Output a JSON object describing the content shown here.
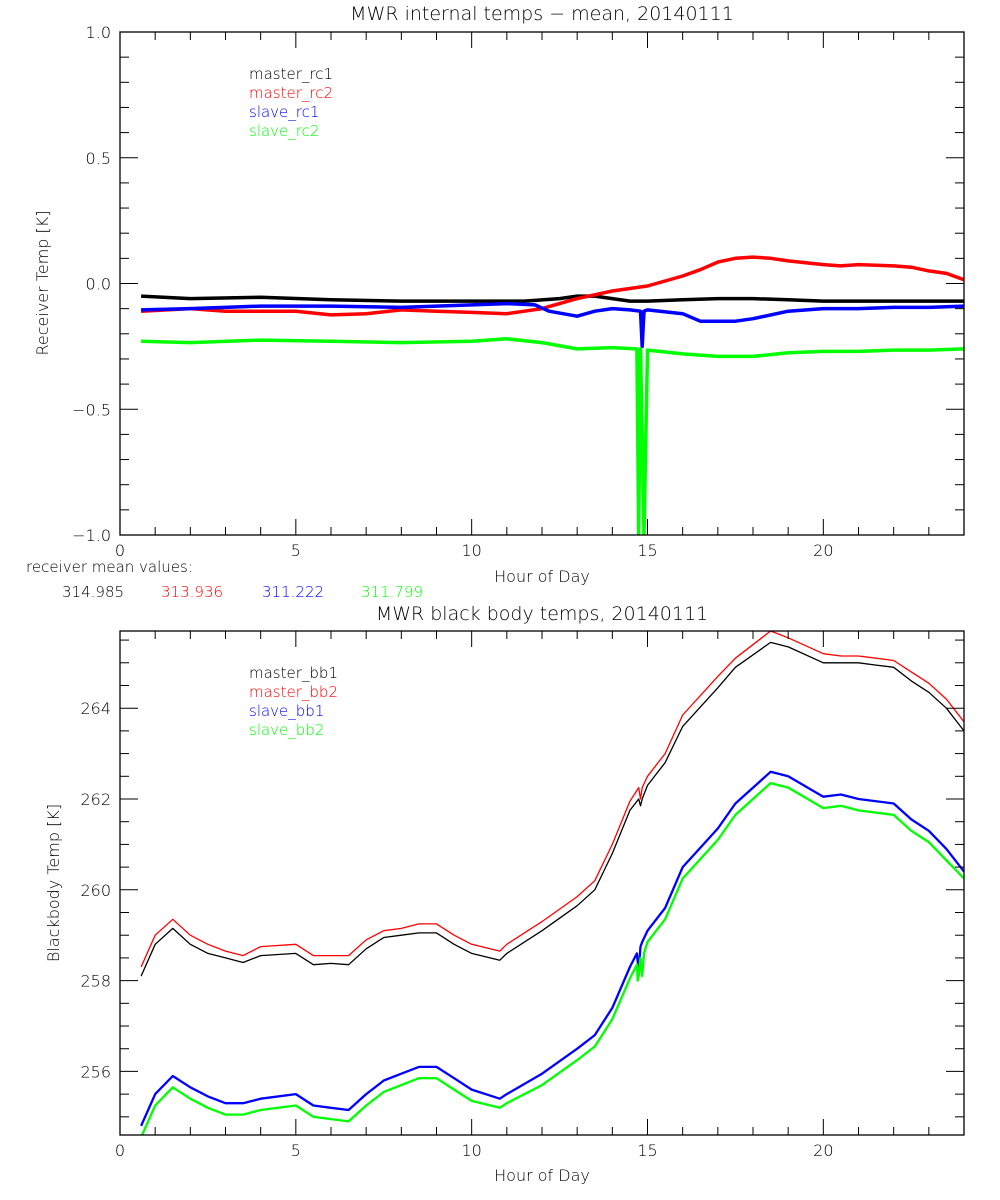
{
  "chart_data": [
    {
      "type": "line",
      "title": "MWR internal temps − mean, 20140111",
      "xlabel": "Hour of Day",
      "ylabel": "Receiver Temp [K]",
      "xlim": [
        0,
        24
      ],
      "ylim": [
        -1.0,
        1.0
      ],
      "xticks": [
        0,
        5,
        10,
        15,
        20
      ],
      "xtick_labels": [
        "0",
        "5",
        "10",
        "15",
        "20"
      ],
      "yticks": [
        -1.0,
        -0.5,
        0.0,
        0.5,
        1.0
      ],
      "ytick_labels": [
        "−1.0",
        "−0.5",
        "0.0",
        "0.5",
        "1.0"
      ],
      "x_minor_step": 1,
      "y_minor_step": 0.1,
      "grid": false,
      "legend_position": "top-left",
      "series": [
        {
          "name": "master_rc1",
          "color": "#000000",
          "x": [
            0.6,
            2,
            4,
            6,
            8,
            10,
            11.5,
            12.5,
            13,
            13.5,
            14,
            14.5,
            15,
            16,
            17,
            18,
            19,
            20,
            21,
            22,
            23,
            24
          ],
          "y": [
            -0.05,
            -0.06,
            -0.055,
            -0.065,
            -0.07,
            -0.07,
            -0.07,
            -0.06,
            -0.05,
            -0.05,
            -0.06,
            -0.07,
            -0.07,
            -0.065,
            -0.06,
            -0.06,
            -0.065,
            -0.07,
            -0.07,
            -0.07,
            -0.07,
            -0.07
          ]
        },
        {
          "name": "master_rc2",
          "color": "#ff0000",
          "x": [
            0.6,
            2,
            3,
            5,
            6,
            7,
            8,
            9,
            10,
            11,
            11.5,
            12,
            12.5,
            13,
            13.5,
            14,
            14.5,
            15,
            15.5,
            16,
            16.5,
            17,
            17.5,
            18,
            18.5,
            19,
            20,
            20.5,
            21,
            22,
            22.5,
            23,
            23.5,
            24
          ],
          "y": [
            -0.11,
            -0.1,
            -0.11,
            -0.11,
            -0.125,
            -0.12,
            -0.105,
            -0.11,
            -0.115,
            -0.12,
            -0.11,
            -0.1,
            -0.08,
            -0.06,
            -0.045,
            -0.03,
            -0.02,
            -0.01,
            0.01,
            0.03,
            0.055,
            0.085,
            0.1,
            0.105,
            0.1,
            0.09,
            0.075,
            0.07,
            0.075,
            0.07,
            0.065,
            0.05,
            0.04,
            0.015
          ]
        },
        {
          "name": "slave_rc1",
          "color": "#0000ff",
          "x": [
            0.6,
            2,
            4,
            6,
            8,
            10,
            11,
            11.8,
            12.2,
            13,
            13.5,
            14,
            14.5,
            14.8,
            14.85,
            14.9,
            15,
            16,
            16.5,
            17,
            17.5,
            18,
            19,
            20,
            21,
            22,
            23,
            24
          ],
          "y": [
            -0.105,
            -0.1,
            -0.09,
            -0.09,
            -0.095,
            -0.085,
            -0.08,
            -0.085,
            -0.11,
            -0.13,
            -0.11,
            -0.1,
            -0.105,
            -0.11,
            -0.25,
            -0.11,
            -0.105,
            -0.12,
            -0.15,
            -0.15,
            -0.15,
            -0.14,
            -0.11,
            -0.1,
            -0.1,
            -0.095,
            -0.095,
            -0.09
          ]
        },
        {
          "name": "slave_rc2",
          "color": "#00ff00",
          "x": [
            0.6,
            2,
            4,
            6,
            8,
            10,
            11,
            12,
            13,
            14,
            14.7,
            14.75,
            14.8,
            14.9,
            15,
            16,
            17,
            18,
            19,
            20,
            21,
            22,
            23,
            24
          ],
          "y": [
            -0.23,
            -0.235,
            -0.225,
            -0.23,
            -0.235,
            -0.23,
            -0.22,
            -0.235,
            -0.26,
            -0.255,
            -0.26,
            -1.0,
            -0.26,
            -1.0,
            -0.265,
            -0.28,
            -0.29,
            -0.29,
            -0.275,
            -0.27,
            -0.27,
            -0.265,
            -0.265,
            -0.26
          ]
        }
      ],
      "annotation": {
        "label": "receiver mean values:",
        "values": [
          {
            "series": "master_rc1",
            "text": "314.985",
            "color": "#000000"
          },
          {
            "series": "master_rc2",
            "text": "313.936",
            "color": "#ff0000"
          },
          {
            "series": "slave_rc1",
            "text": "311.222",
            "color": "#0000ff"
          },
          {
            "series": "slave_rc2",
            "text": "311.799",
            "color": "#00ff00"
          }
        ]
      }
    },
    {
      "type": "line",
      "title": "MWR black body temps, 20140111",
      "xlabel": "Hour of Day",
      "ylabel": "Blackbody Temp [K]",
      "xlim": [
        0,
        24
      ],
      "ylim": [
        254.6,
        265.7
      ],
      "xticks": [
        0,
        5,
        10,
        15,
        20
      ],
      "xtick_labels": [
        "0",
        "5",
        "10",
        "15",
        "20"
      ],
      "yticks": [
        256,
        258,
        260,
        262,
        264
      ],
      "ytick_labels": [
        "256",
        "258",
        "260",
        "262",
        "264"
      ],
      "x_minor_step": 1,
      "y_minor_step": 0.5,
      "grid": false,
      "legend_position": "top-left",
      "series": [
        {
          "name": "master_bb1",
          "color": "#000000",
          "x": [
            0.6,
            1.0,
            1.5,
            2,
            2.5,
            3,
            3.5,
            4,
            5,
            5.5,
            6,
            6.5,
            7,
            7.5,
            8,
            8.5,
            9,
            9.5,
            10,
            10.8,
            11,
            12,
            13,
            13.5,
            14,
            14.5,
            14.75,
            14.8,
            14.85,
            15,
            15.5,
            16,
            17,
            17.5,
            18.5,
            19,
            20,
            20.5,
            21,
            21.5,
            22,
            22.5,
            23,
            23.5,
            24
          ],
          "y": [
            258.1,
            258.8,
            259.15,
            258.8,
            258.6,
            258.5,
            258.4,
            258.55,
            258.6,
            258.35,
            258.38,
            258.35,
            258.7,
            258.95,
            259.0,
            259.05,
            259.05,
            258.8,
            258.6,
            258.45,
            258.6,
            259.1,
            259.65,
            260.0,
            260.8,
            261.75,
            262.0,
            261.85,
            262.0,
            262.3,
            262.8,
            263.6,
            264.45,
            264.9,
            265.45,
            265.35,
            265.0,
            265.0,
            265.0,
            264.95,
            264.9,
            264.6,
            264.35,
            264.0,
            263.5
          ]
        },
        {
          "name": "master_bb2",
          "color": "#ff0000",
          "x": [
            0.6,
            1.0,
            1.5,
            2,
            2.5,
            3,
            3.5,
            4,
            5,
            5.5,
            6,
            6.5,
            7,
            7.5,
            8,
            8.5,
            9,
            9.5,
            10,
            10.8,
            11,
            12,
            13,
            13.5,
            14,
            14.5,
            14.75,
            14.8,
            14.85,
            15,
            15.5,
            16,
            17,
            17.5,
            18.5,
            19,
            20,
            20.5,
            21,
            21.5,
            22,
            22.5,
            23,
            23.5,
            24
          ],
          "y": [
            258.3,
            259.0,
            259.35,
            259.0,
            258.8,
            258.65,
            258.55,
            258.75,
            258.8,
            258.55,
            258.55,
            258.55,
            258.9,
            259.1,
            259.15,
            259.25,
            259.25,
            259.0,
            258.8,
            258.65,
            258.8,
            259.3,
            259.85,
            260.2,
            261.0,
            261.95,
            262.25,
            262.0,
            262.25,
            262.5,
            263.0,
            263.85,
            264.7,
            265.1,
            265.7,
            265.55,
            265.2,
            265.15,
            265.15,
            265.1,
            265.05,
            264.8,
            264.55,
            264.2,
            263.7
          ]
        },
        {
          "name": "slave_bb1",
          "color": "#0000ff",
          "x": [
            0.6,
            1.0,
            1.5,
            2,
            2.5,
            3,
            3.5,
            4,
            5,
            5.5,
            6,
            6.5,
            7,
            7.5,
            8,
            8.5,
            9,
            9.5,
            10,
            10.8,
            11,
            12,
            13,
            13.5,
            14,
            14.5,
            14.7,
            14.75,
            14.8,
            14.85,
            15,
            15.5,
            16,
            17,
            17.5,
            18.5,
            19,
            20,
            20.5,
            21,
            22,
            22.5,
            23,
            23.5,
            24
          ],
          "y": [
            254.8,
            255.5,
            255.9,
            255.65,
            255.45,
            255.3,
            255.3,
            255.4,
            255.5,
            255.25,
            255.2,
            255.15,
            255.5,
            255.8,
            255.95,
            256.1,
            256.1,
            255.85,
            255.6,
            255.4,
            255.5,
            255.95,
            256.5,
            256.8,
            257.4,
            258.3,
            258.6,
            258.2,
            258.75,
            258.85,
            259.1,
            259.6,
            260.5,
            261.35,
            261.9,
            262.6,
            262.5,
            262.05,
            262.1,
            262.0,
            261.9,
            261.55,
            261.3,
            260.9,
            260.4
          ]
        },
        {
          "name": "slave_bb2",
          "color": "#00ff00",
          "x": [
            0.6,
            1.0,
            1.5,
            2,
            2.5,
            3,
            3.5,
            4,
            5,
            5.5,
            6,
            6.5,
            7,
            7.5,
            8,
            8.5,
            9,
            9.5,
            10,
            10.8,
            11,
            12,
            13,
            13.5,
            14,
            14.5,
            14.7,
            14.72,
            14.75,
            14.8,
            14.85,
            14.9,
            15,
            15.5,
            16,
            17,
            17.5,
            18.5,
            19,
            20,
            20.5,
            21,
            22,
            22.5,
            23,
            23.5,
            24
          ],
          "y": [
            254.55,
            255.25,
            255.65,
            255.4,
            255.2,
            255.05,
            255.05,
            255.15,
            255.25,
            255.0,
            254.95,
            254.9,
            255.25,
            255.55,
            255.7,
            255.85,
            255.85,
            255.6,
            255.35,
            255.2,
            255.3,
            255.7,
            256.25,
            256.55,
            257.15,
            258.05,
            258.35,
            258.0,
            258.1,
            258.5,
            258.1,
            258.6,
            258.85,
            259.35,
            260.25,
            261.1,
            261.65,
            262.35,
            262.25,
            261.8,
            261.85,
            261.75,
            261.65,
            261.3,
            261.05,
            260.65,
            260.25
          ]
        }
      ]
    }
  ]
}
